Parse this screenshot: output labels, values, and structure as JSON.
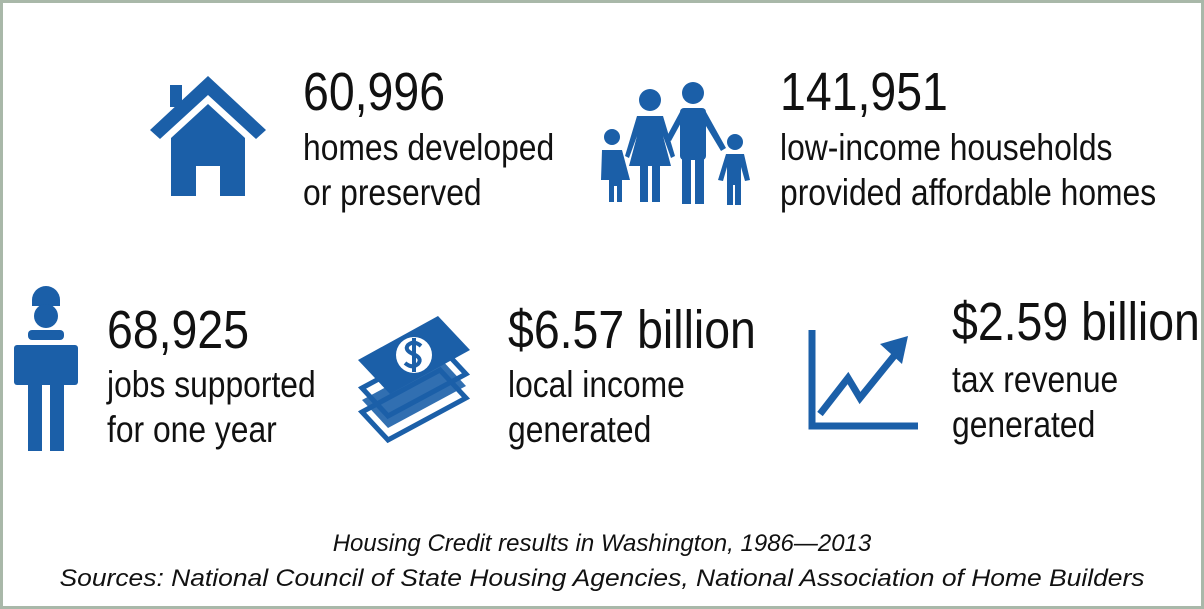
{
  "stats": [
    {
      "value": "60,996",
      "lines": [
        "homes developed",
        "or preserved"
      ]
    },
    {
      "value": "141,951",
      "lines": [
        "low-income households",
        "provided affordable homes"
      ]
    },
    {
      "value": "68,925",
      "lines": [
        "jobs supported",
        "for one year"
      ]
    },
    {
      "value": "$6.57 billion",
      "lines": [
        "local income",
        "generated"
      ]
    },
    {
      "value": "$2.59 billion",
      "lines": [
        "tax revenue",
        "generated"
      ]
    }
  ],
  "footer": {
    "caption": "Housing Credit results in Washington, 1986—2013",
    "sources": "Sources: National Council of State Housing Agencies, National Association of Home Builders"
  }
}
